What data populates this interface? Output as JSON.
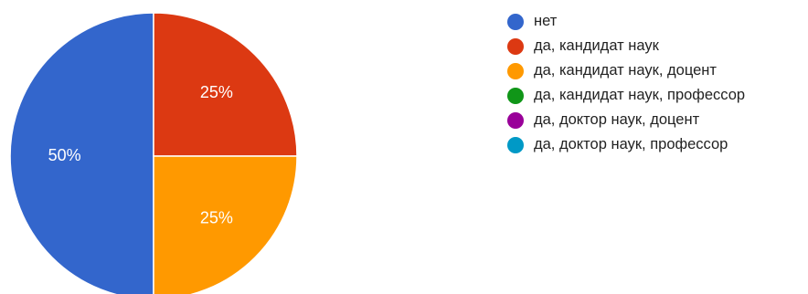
{
  "chart_data": {
    "type": "pie",
    "title": "",
    "categories": [
      "нет",
      "да, кандидат наук",
      "да, кандидат наук, доцент",
      "да, кандидат наук, профессор",
      "да, доктор наук, доцент",
      "да, доктор наук, профессор"
    ],
    "values": [
      50,
      25,
      25,
      0,
      0,
      0
    ],
    "value_labels": [
      "50%",
      "25%",
      "25%",
      "",
      "",
      ""
    ],
    "colors": [
      "#3366cc",
      "#dc3912",
      "#ff9900",
      "#109618",
      "#990099",
      "#0099c6"
    ],
    "legend_position": "right"
  }
}
